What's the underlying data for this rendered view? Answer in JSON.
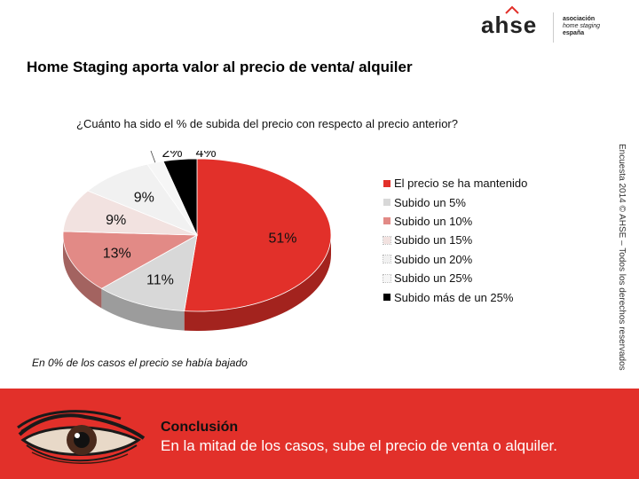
{
  "header": {
    "logo_word": "ahse",
    "logo_sub": [
      "asociación",
      "home staging",
      "españa"
    ],
    "title": "Home Staging aporta valor al precio de venta/ alquiler"
  },
  "question": "¿Cuánto ha sido el % de subida del precio con respecto al precio anterior?",
  "side_text": "Encuesta 2014 © AHSE – Todos los derechos reservados",
  "note": "En 0% de los casos el precio se había bajado",
  "conclusion": {
    "title": "Conclusión",
    "text": "En la mitad de los casos, sube el precio de venta o alquiler."
  },
  "colors": {
    "accent": "#e2302a",
    "banner": "#e2302a"
  },
  "icons": [
    "eye-icon"
  ],
  "chart_data": {
    "type": "pie",
    "title": "",
    "labels": [
      "El precio se ha mantenido",
      "Subido un 5%",
      "Subido un 10%",
      "Subido un 15%",
      "Subido un 20%",
      "Subido un 25%",
      "Subido más de un 25%"
    ],
    "values": [
      51,
      11,
      13,
      9,
      9,
      2,
      4
    ],
    "data_labels": [
      "51%",
      "11%",
      "13%",
      "9%",
      "9%",
      "2%",
      "4%"
    ],
    "colors": [
      "#e2302a",
      "#d8d8d8",
      "#e28a86",
      "#f2e2e0",
      "#f1f1f1",
      "#f6f6f6",
      "#000000"
    ],
    "style": "3d",
    "legend_position": "right"
  }
}
